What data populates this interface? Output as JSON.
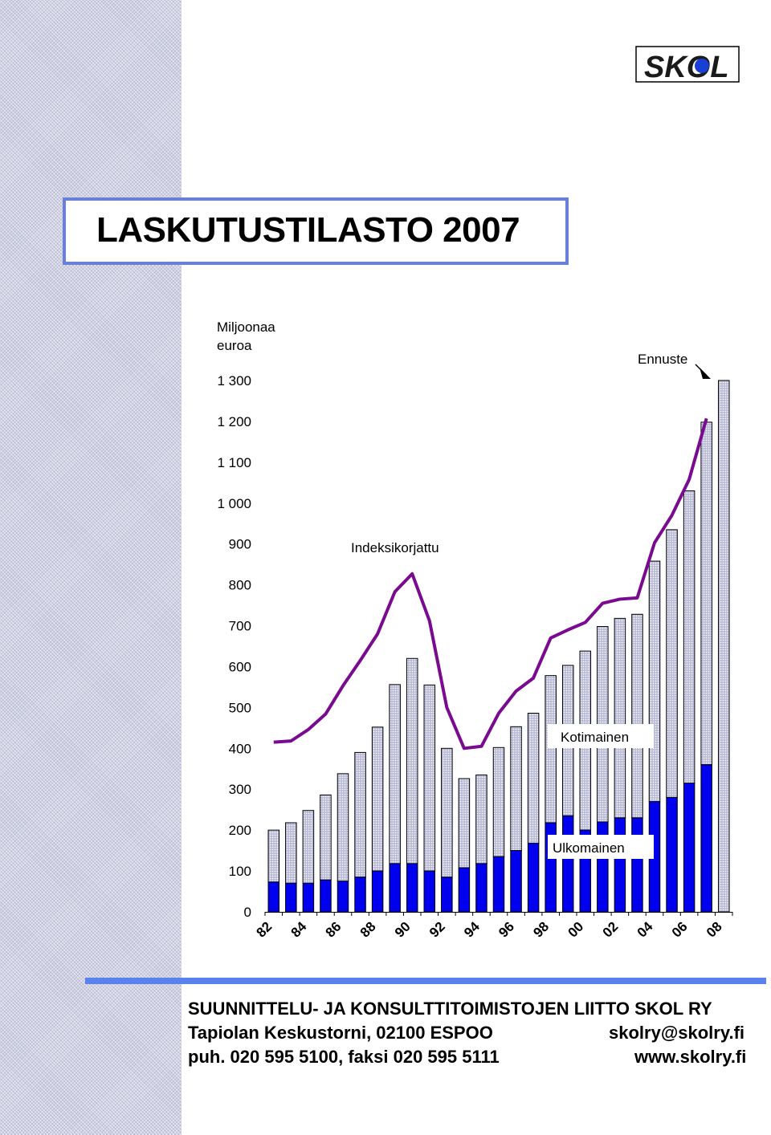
{
  "brand": {
    "logo_text": "SKOL"
  },
  "title": "LASKUTUSTILASTO 2007",
  "chart_data": {
    "type": "bar",
    "ylabel_line1": "Miljoonaa",
    "ylabel_line2": "euroa",
    "ylim": [
      0,
      1300
    ],
    "yticks": [
      0,
      100,
      200,
      300,
      400,
      500,
      600,
      700,
      800,
      900,
      1000,
      1100,
      1200,
      1300
    ],
    "ytick_labels": [
      "0",
      "100",
      "200",
      "300",
      "400",
      "500",
      "600",
      "700",
      "800",
      "900",
      "1 000",
      "1 100",
      "1 200",
      "1 300"
    ],
    "x_tick_labels": [
      "82",
      "84",
      "86",
      "88",
      "90",
      "92",
      "94",
      "96",
      "98",
      "00",
      "02",
      "04",
      "06",
      "08"
    ],
    "years": [
      "82",
      "83",
      "84",
      "85",
      "86",
      "87",
      "88",
      "89",
      "90",
      "91",
      "92",
      "93",
      "94",
      "95",
      "96",
      "97",
      "98",
      "99",
      "00",
      "01",
      "02",
      "03",
      "04",
      "05",
      "06",
      "07",
      "08"
    ],
    "stacked": true,
    "series": [
      {
        "name": "Ulkomainen",
        "color": "#0000ee",
        "values": [
          73,
          70,
          70,
          78,
          75,
          85,
          100,
          118,
          118,
          100,
          85,
          108,
          118,
          135,
          150,
          168,
          218,
          235,
          200,
          220,
          230,
          230,
          270,
          280,
          315,
          360,
          null
        ]
      },
      {
        "name": "Kotimainen",
        "color": "#c9cbe4",
        "values": [
          127,
          148,
          178,
          208,
          263,
          305,
          352,
          438,
          502,
          455,
          315,
          218,
          217,
          267,
          303,
          318,
          360,
          368,
          438,
          478,
          488,
          498,
          588,
          655,
          715,
          838,
          1300
        ]
      }
    ],
    "totals": [
      200,
      218,
      248,
      286,
      338,
      390,
      452,
      556,
      620,
      555,
      400,
      326,
      335,
      402,
      453,
      486,
      578,
      603,
      638,
      698,
      718,
      728,
      858,
      935,
      1030,
      1198,
      1300
    ],
    "line": {
      "name": "Indeksikorjattu",
      "color": "#7a0a90",
      "x": [
        "82",
        "83",
        "84",
        "85",
        "86",
        "87",
        "88",
        "89",
        "90",
        "91",
        "92",
        "93",
        "94",
        "95",
        "96",
        "97",
        "98",
        "99",
        "00",
        "01",
        "02",
        "03",
        "04",
        "05",
        "06",
        "07"
      ],
      "values": [
        415,
        418,
        446,
        484,
        553,
        615,
        680,
        783,
        827,
        712,
        500,
        400,
        405,
        486,
        540,
        572,
        670,
        690,
        708,
        755,
        765,
        768,
        903,
        970,
        1058,
        1207
      ]
    },
    "annotations": {
      "forecast": "Ennuste",
      "domestic": "Kotimainen",
      "foreign": "Ulkomainen",
      "indexed": "Indeksikorjattu"
    }
  },
  "footer": {
    "line1": "SUUNNITTELU- JA KONSULTTITOIMISTOJEN LIITTO SKOL RY",
    "address": "Tapiolan Keskustorni, 02100 ESPOO",
    "email": "skolry@skolry.fi",
    "phone": "puh. 020 595 5100, faksi 020 595 5111",
    "web": "www.skolry.fi",
    "bar_color": "#5a82ee"
  }
}
